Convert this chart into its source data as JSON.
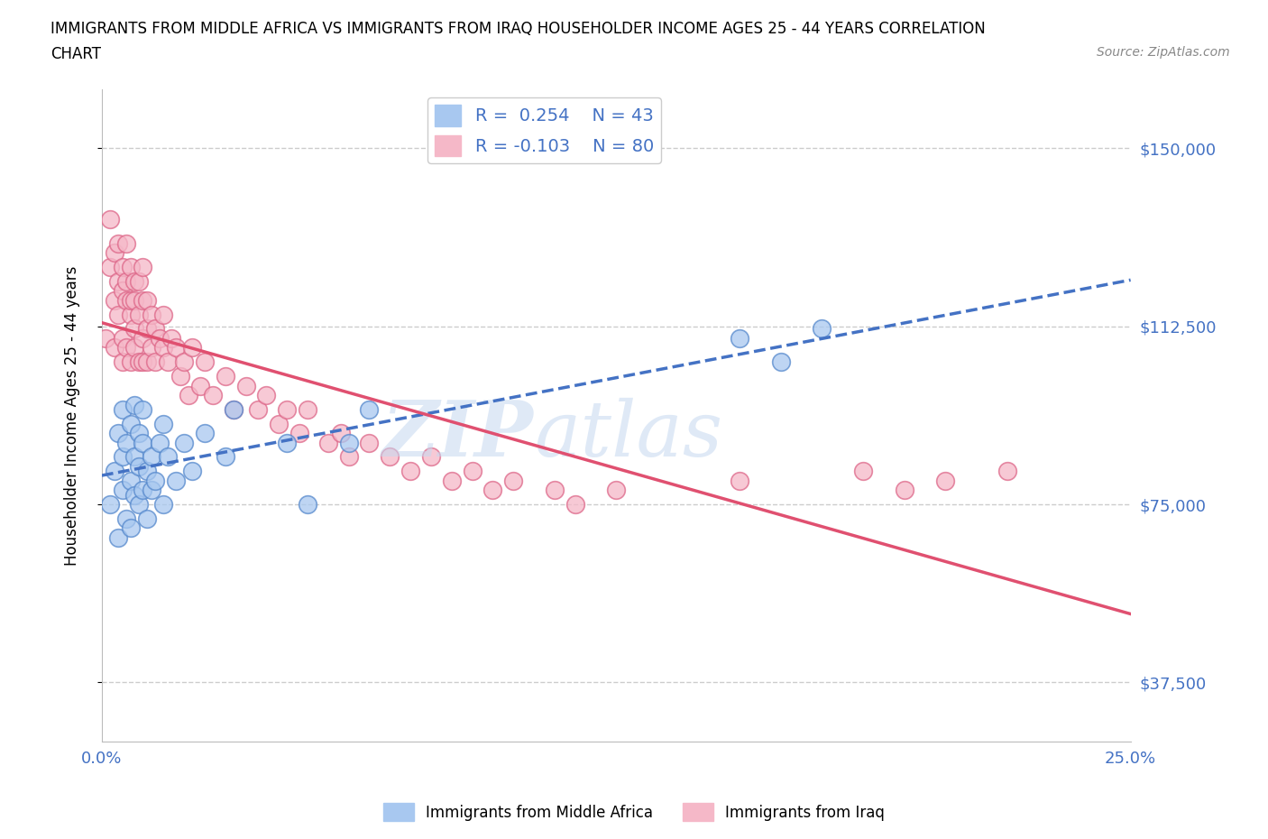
{
  "title_line1": "IMMIGRANTS FROM MIDDLE AFRICA VS IMMIGRANTS FROM IRAQ HOUSEHOLDER INCOME AGES 25 - 44 YEARS CORRELATION",
  "title_line2": "CHART",
  "source_text": "Source: ZipAtlas.com",
  "ylabel": "Householder Income Ages 25 - 44 years",
  "xlim": [
    0.0,
    0.25
  ],
  "ylim": [
    25000,
    162500
  ],
  "yticks": [
    37500,
    75000,
    112500,
    150000
  ],
  "ytick_labels": [
    "$37,500",
    "$75,000",
    "$112,500",
    "$150,000"
  ],
  "xticks": [
    0.0,
    0.05,
    0.1,
    0.15,
    0.2,
    0.25
  ],
  "xtick_labels": [
    "0.0%",
    "",
    "",
    "",
    "",
    "25.0%"
  ],
  "legend_R_blue": "0.254",
  "legend_N_blue": "43",
  "legend_R_pink": "-0.103",
  "legend_N_pink": "80",
  "blue_color": "#a8c8f0",
  "pink_color": "#f5b8c8",
  "blue_edge_color": "#5588cc",
  "pink_edge_color": "#dd6688",
  "blue_line_color": "#4472c4",
  "pink_line_color": "#e05070",
  "blue_scatter_x": [
    0.002,
    0.003,
    0.004,
    0.004,
    0.005,
    0.005,
    0.005,
    0.006,
    0.006,
    0.007,
    0.007,
    0.007,
    0.008,
    0.008,
    0.008,
    0.009,
    0.009,
    0.009,
    0.01,
    0.01,
    0.01,
    0.011,
    0.011,
    0.012,
    0.012,
    0.013,
    0.014,
    0.015,
    0.015,
    0.016,
    0.018,
    0.02,
    0.022,
    0.025,
    0.03,
    0.032,
    0.045,
    0.05,
    0.06,
    0.065,
    0.155,
    0.165,
    0.175
  ],
  "blue_scatter_y": [
    75000,
    82000,
    68000,
    90000,
    95000,
    78000,
    85000,
    72000,
    88000,
    80000,
    92000,
    70000,
    85000,
    77000,
    96000,
    83000,
    75000,
    90000,
    88000,
    78000,
    95000,
    82000,
    72000,
    85000,
    78000,
    80000,
    88000,
    75000,
    92000,
    85000,
    80000,
    88000,
    82000,
    90000,
    85000,
    95000,
    88000,
    75000,
    88000,
    95000,
    110000,
    105000,
    112000
  ],
  "pink_scatter_x": [
    0.001,
    0.002,
    0.002,
    0.003,
    0.003,
    0.003,
    0.004,
    0.004,
    0.004,
    0.005,
    0.005,
    0.005,
    0.005,
    0.006,
    0.006,
    0.006,
    0.006,
    0.007,
    0.007,
    0.007,
    0.007,
    0.008,
    0.008,
    0.008,
    0.008,
    0.009,
    0.009,
    0.009,
    0.01,
    0.01,
    0.01,
    0.01,
    0.011,
    0.011,
    0.011,
    0.012,
    0.012,
    0.013,
    0.013,
    0.014,
    0.015,
    0.015,
    0.016,
    0.017,
    0.018,
    0.019,
    0.02,
    0.021,
    0.022,
    0.024,
    0.025,
    0.027,
    0.03,
    0.032,
    0.035,
    0.038,
    0.04,
    0.043,
    0.045,
    0.048,
    0.05,
    0.055,
    0.058,
    0.06,
    0.065,
    0.07,
    0.075,
    0.08,
    0.085,
    0.09,
    0.095,
    0.1,
    0.11,
    0.115,
    0.125,
    0.155,
    0.185,
    0.195,
    0.205,
    0.22
  ],
  "pink_scatter_y": [
    110000,
    125000,
    135000,
    118000,
    128000,
    108000,
    122000,
    115000,
    130000,
    120000,
    110000,
    125000,
    105000,
    118000,
    130000,
    108000,
    122000,
    115000,
    125000,
    105000,
    118000,
    112000,
    122000,
    108000,
    118000,
    115000,
    105000,
    122000,
    110000,
    118000,
    105000,
    125000,
    112000,
    118000,
    105000,
    115000,
    108000,
    112000,
    105000,
    110000,
    108000,
    115000,
    105000,
    110000,
    108000,
    102000,
    105000,
    98000,
    108000,
    100000,
    105000,
    98000,
    102000,
    95000,
    100000,
    95000,
    98000,
    92000,
    95000,
    90000,
    95000,
    88000,
    90000,
    85000,
    88000,
    85000,
    82000,
    85000,
    80000,
    82000,
    78000,
    80000,
    78000,
    75000,
    78000,
    80000,
    82000,
    78000,
    80000,
    82000
  ]
}
